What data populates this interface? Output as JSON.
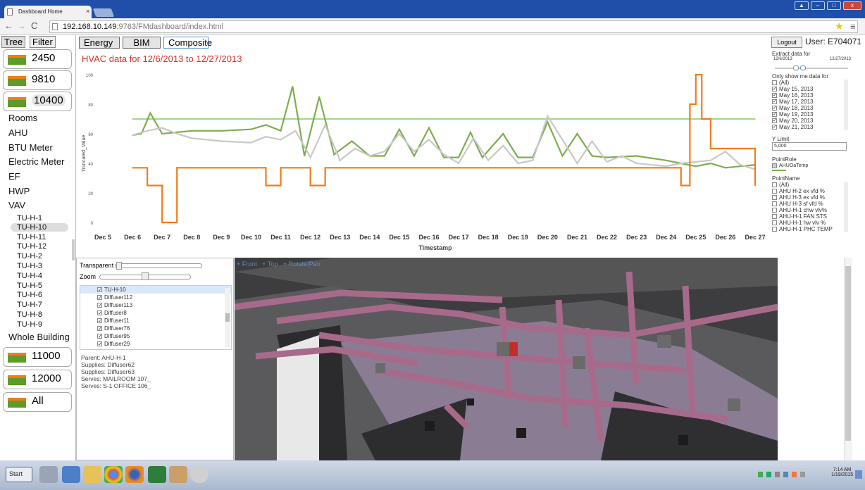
{
  "browser": {
    "tab_title": "Dashboard Home",
    "tab_close": "×",
    "url_host": "192.168.10.149",
    "url_path": ":9763/FMdashboard/index.html",
    "window_buttons": [
      "▲",
      "‒",
      "□",
      "x"
    ]
  },
  "sidebar": {
    "tabs": [
      "Tree",
      "Filter"
    ],
    "buildings_top": [
      "2450",
      "9810",
      "10400"
    ],
    "categories": [
      "Rooms",
      "AHU",
      "BTU Meter",
      "Electric Meter",
      "EF",
      "HWP",
      "VAV"
    ],
    "vav_items": [
      "TU-H-1",
      "TU-H-10",
      "TU-H-11",
      "TU-H-12",
      "TU-H-2",
      "TU-H-3",
      "TU-H-4",
      "TU-H-5",
      "TU-H-6",
      "TU-H-7",
      "TU-H-8",
      "TU-H-9"
    ],
    "whole_building": "Whole Building",
    "buildings_bottom": [
      "11000",
      "12000",
      "All"
    ]
  },
  "top_tabs": [
    "Energy",
    "BIM",
    "Composite"
  ],
  "header": {
    "logout": "Logout",
    "user": "User: E704071"
  },
  "chart_data": {
    "type": "line",
    "title": "HVAC data for 12/6/2013 to 12/27/2013",
    "xlabel": "Timestamp",
    "ylabel": "Truncated_Value",
    "ylim": [
      0,
      100
    ],
    "yticks": [
      0,
      20,
      40,
      60,
      80,
      100
    ],
    "categories": [
      "Dec 5",
      "Dec 6",
      "Dec 7",
      "Dec 8",
      "Dec 9",
      "Dec 10",
      "Dec 11",
      "Dec 12",
      "Dec 13",
      "Dec 14",
      "Dec 15",
      "Dec 16",
      "Dec 17",
      "Dec 18",
      "Dec 19",
      "Dec 20",
      "Dec 21",
      "Dec 22",
      "Dec 23",
      "Dec 24",
      "Dec 25",
      "Dec 26",
      "Dec 27"
    ],
    "series": [
      {
        "color": "#a6d782",
        "x": [
          1,
          1.2,
          3,
          6,
          9,
          12,
          15,
          18,
          21,
          22
        ],
        "values": [
          70,
          70,
          70,
          70,
          70,
          70,
          70,
          70,
          70,
          70
        ]
      },
      {
        "color": "#7dad4e",
        "x": [
          1,
          1.3,
          1.6,
          2,
          3,
          4,
          5,
          5.5,
          6,
          6.4,
          6.8,
          7.3,
          7.8,
          8.4,
          9,
          9.5,
          10,
          10.5,
          11,
          11.5,
          12,
          12.4,
          12.8,
          13.5,
          14,
          14.5,
          15,
          15.5,
          16,
          16.5,
          17,
          18,
          19,
          20,
          20.5,
          21,
          21.5,
          22
        ],
        "values": [
          59,
          60,
          74,
          60,
          62,
          62,
          63,
          66,
          62,
          92,
          45,
          85,
          46,
          55,
          45,
          45,
          63,
          45,
          64,
          44,
          44,
          61,
          44,
          60,
          44,
          44,
          68,
          45,
          60,
          45,
          44,
          45,
          42,
          38,
          40,
          37,
          38,
          39
        ]
      },
      {
        "color": "#c8c8c8",
        "x": [
          1,
          1.5,
          2,
          2.5,
          3,
          4,
          5,
          5.5,
          6,
          6.5,
          7,
          7.5,
          8,
          8.5,
          9,
          9.5,
          10,
          10.5,
          11,
          11.5,
          12,
          12.5,
          13,
          13.5,
          14,
          14.5,
          15,
          16,
          16.5,
          17,
          17.5,
          18,
          19,
          19.5,
          20,
          20.5,
          21,
          21.5,
          22
        ],
        "values": [
          59,
          62,
          64,
          60,
          57,
          55,
          54,
          58,
          56,
          62,
          44,
          66,
          42,
          50,
          45,
          48,
          60,
          48,
          56,
          46,
          40,
          57,
          42,
          52,
          40,
          42,
          72,
          40,
          55,
          41,
          45,
          40,
          38,
          40,
          41,
          42,
          48,
          39,
          36
        ]
      },
      {
        "color": "#f07c1a",
        "x": [
          1,
          1.5,
          2,
          2.5,
          3,
          4,
          5,
          5.5,
          6,
          6.5,
          7,
          7.5,
          8,
          9,
          10,
          11,
          12,
          13,
          14,
          15,
          16,
          17,
          18,
          19,
          19.5,
          19.8,
          20,
          20.2,
          20.5,
          21,
          21.5,
          22
        ],
        "values": [
          37,
          25,
          0,
          37,
          37,
          37,
          37,
          25,
          37,
          37,
          25,
          37,
          37,
          37,
          37,
          37,
          37,
          37,
          37,
          37,
          37,
          37,
          37,
          37,
          25,
          80,
          100,
          70,
          50,
          50,
          50,
          25
        ]
      }
    ]
  },
  "filters": {
    "extract_label": "Extract data for",
    "date_start": "12/6/2013",
    "date_end": "12/27/2013",
    "only_show_label": "Only show me data for",
    "dates": [
      {
        "label": "(All)",
        "checked": false
      },
      {
        "label": "May 15, 2013",
        "checked": true
      },
      {
        "label": "May 16, 2013",
        "checked": true
      },
      {
        "label": "May 17, 2013",
        "checked": true
      },
      {
        "label": "May 18, 2013",
        "checked": true
      },
      {
        "label": "May 19, 2013",
        "checked": true
      },
      {
        "label": "May 20, 2013",
        "checked": true
      },
      {
        "label": "May 21, 2013",
        "checked": true
      }
    ],
    "ylimit_label": "Y Limit",
    "ylimit_value": "5,000",
    "pointrole_label": "PointRole",
    "pointrole_item": "AHUOaTemp",
    "pointname_label": "PointName",
    "pointnames": [
      "(All)",
      "AHU H-2 ex vfd %",
      "AHU H-3 ex vfd %",
      "AHU H-3 sf vfd %",
      "AHU-H-1 chw vlv%",
      "AHU-H-1 FAN STS",
      "AHU-H-1 hw vlv %",
      "AHU-H-1 PHC TEMP"
    ]
  },
  "controls": {
    "transparent_label": "Transparent",
    "zoom_label": "Zoom",
    "tree": [
      {
        "label": "TU-H-10",
        "checked": true
      },
      {
        "label": "Diffuser112",
        "checked": true
      },
      {
        "label": "Diffuser113",
        "checked": true
      },
      {
        "label": "Diffuser8",
        "checked": true
      },
      {
        "label": "Diffuser11",
        "checked": true
      },
      {
        "label": "Diffuser76",
        "checked": true
      },
      {
        "label": "Diffuser95",
        "checked": true
      },
      {
        "label": "Diffuser29",
        "checked": true
      }
    ],
    "info": [
      "Parent: AHU-H-1",
      "Supplies: Diffuser62",
      "Supplies: Diffuser63",
      "Serves: MAILROOM 107_",
      "Serves: S-1 OFFICE 106_"
    ]
  },
  "viewer": {
    "buttons": [
      "+ Front",
      "+ Top",
      "+ Rotate/Pan"
    ]
  },
  "taskbar": {
    "start": "Start",
    "time": "7:14 AM",
    "date": "1/19/2015"
  }
}
